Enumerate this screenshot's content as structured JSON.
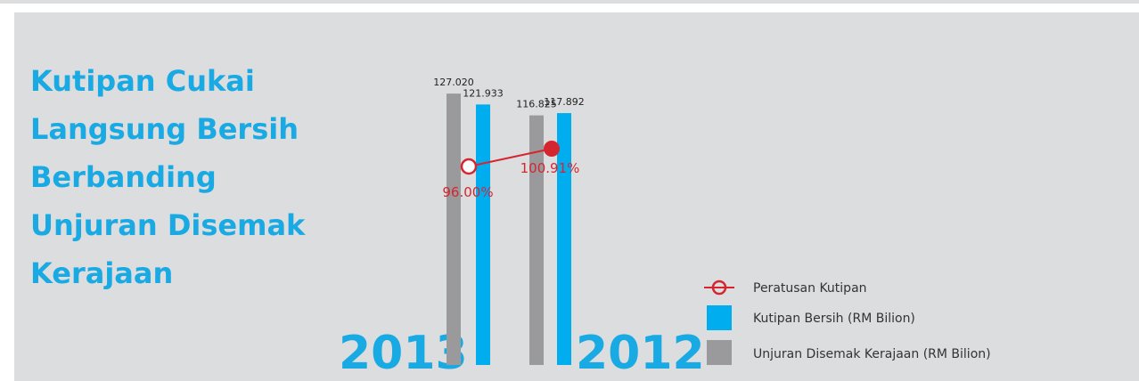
{
  "title_lines": [
    "Kutipan Cukai",
    "Langsung Bersih",
    "Berbanding",
    "Unjuran Disemak",
    "Kerajaan"
  ],
  "colors": {
    "accent": "#19a9e3",
    "unjuran": "#9a9a9c",
    "kutipan": "#00aeef",
    "peratusan": "#d5262f",
    "background": "#dcdddf"
  },
  "chart_data": {
    "type": "bar",
    "categories": [
      "2013",
      "2012"
    ],
    "series": [
      {
        "name": "Unjuran Disemak Kerajaan (RM Bilion)",
        "values": [
          127.02,
          116.825
        ],
        "labels": [
          "127.020",
          "116.825"
        ]
      },
      {
        "name": "Kutipan Bersih (RM Bilion)",
        "values": [
          121.933,
          117.892
        ],
        "labels": [
          "121.933",
          "117.892"
        ]
      }
    ],
    "line_series": {
      "name": "Peratusan Kutipan",
      "values": [
        96.0,
        100.91
      ],
      "labels": [
        "96.00%",
        "100.91%"
      ]
    },
    "legend": [
      "Peratusan Kutipan",
      "Kutipan Bersih (RM Bilion)",
      "Unjuran Disemak Kerajaan (RM Bilion)"
    ],
    "legend_position": "bottom-right",
    "grid": false
  }
}
